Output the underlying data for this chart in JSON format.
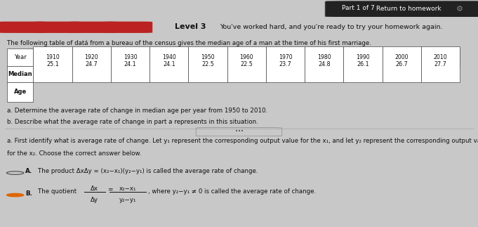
{
  "bg_dark": "#1e2a38",
  "bg_blue": "#b8cdd9",
  "bg_light": "#c8c8c8",
  "bg_panel": "#d0d0d0",
  "part_text": "Part 1 of 7",
  "return_button_text": "Return to homework",
  "level_text": "Level 3",
  "level_desc": "You've worked hard, and you're ready to try your homework again.",
  "bar_color": "#bb2222",
  "table_intro": "The following table of datá from a bureau of the census gives the median age of a man at the time of his first marriage.",
  "table_years": [
    "Year",
    "1910",
    "1920",
    "1930",
    "1940",
    "1950",
    "1960",
    "1970",
    "1980",
    "1990",
    "2000",
    "2010"
  ],
  "row1_label": "Median",
  "row2_label": "Age",
  "table_values": [
    "25.1",
    "24.7",
    "24.1",
    "24.1",
    "22.5",
    "22.5",
    "23.7",
    "24.8",
    "26.1",
    "26.7",
    "27.7"
  ],
  "task_a": "a. Determine the average rate of change in median age per year from 1950 to 2010.",
  "task_b": "b. Describe what the average rate of change in part a represents in this situation.",
  "q_line1": "a. First identify what is average rate of change. Let y₁ represent the corresponding output value for the x₁, and let y₂ represent the corresponding output values",
  "q_line2": "for the x₂. Choose the correct answer below.",
  "optA_text": "The product ΔxΔy = (x₂−x₁)(y₂−y₁) is called the average rate of change.",
  "optB_intro": "The quotient",
  "optB_frac_top": "Δx   x₂−x₁",
  "optB_frac_bot": "Δy   y₂−y₁",
  "optB_suffix": ", where y₂−y₁ ≠ 0 is called the average rate of change.",
  "radio_fill": "#dd6600"
}
